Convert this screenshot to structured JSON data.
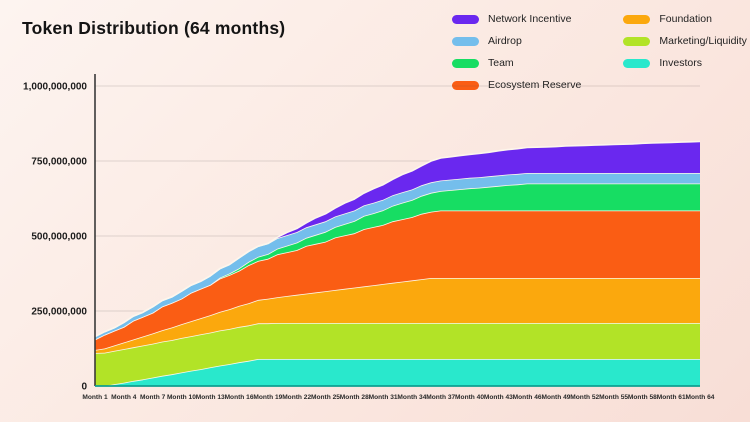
{
  "title": "Token Distribution (64 months)",
  "colors": {
    "background_top": "#fdf4f0",
    "background_bottom": "#f8ded6",
    "title_text": "#141414",
    "axis_line": "#3a3a3a",
    "baseline": "#0e9f90",
    "gridline": "rgba(90,80,75,0.18)",
    "band_edge_stroke": "#fdf6ec"
  },
  "legend": {
    "columns": [
      [
        {
          "label": "Network Incentive",
          "color": "#6a28ef"
        },
        {
          "label": "Airdrop",
          "color": "#74beec"
        },
        {
          "label": "Team",
          "color": "#17dd63"
        },
        {
          "label": "Ecosystem Reserve",
          "color": "#fa5d14"
        }
      ],
      [
        {
          "label": "Foundation",
          "color": "#fba80d"
        },
        {
          "label": "Marketing/Liquidity",
          "color": "#b2e327"
        },
        {
          "label": "Investors",
          "color": "#29e8cc"
        }
      ]
    ]
  },
  "chart_data": {
    "type": "area",
    "stacked": true,
    "title": "Token Distribution (64 months)",
    "xlabel": "",
    "ylabel": "",
    "unit_multiplier": 1000000,
    "x_months": {
      "start": 1,
      "end": 64
    },
    "ylim_millions": [
      0,
      1000
    ],
    "grid": true,
    "legend_position": "top-right",
    "yticks": {
      "values_millions": [
        0,
        250,
        500,
        750,
        1000
      ],
      "labels": [
        "0",
        "250,000,000",
        "500,000,000",
        "750,000,000",
        "1,000,000,000"
      ]
    },
    "xticks": {
      "months": [
        1,
        4,
        7,
        10,
        13,
        16,
        19,
        22,
        25,
        28,
        31,
        34,
        37,
        40,
        43,
        46,
        49,
        52,
        55,
        58,
        61,
        64
      ],
      "labels": [
        "Month 1",
        "Month 4",
        "Month 7",
        "Month 10",
        "Month 13",
        "Month 16",
        "Month 19",
        "Month 22",
        "Month 25",
        "Month 28",
        "Month 31",
        "Month 34",
        "Month 37",
        "Month 40",
        "Month 43",
        "Month 46",
        "Month 49",
        "Month 52",
        "Month 55",
        "Month 58",
        "Month 61",
        "Month 64"
      ]
    },
    "series_order_note": "bottom of stack first",
    "series": [
      {
        "name": "Investors",
        "color": "#29e8cc",
        "values_millions": [
          0,
          0,
          6,
          11,
          17,
          22,
          28,
          34,
          39,
          45,
          51,
          56,
          62,
          68,
          73,
          79,
          84,
          90,
          90,
          90,
          90,
          90,
          90,
          90,
          90,
          90,
          90,
          90,
          90,
          90,
          90,
          90,
          90,
          90,
          90,
          90,
          90,
          90,
          90,
          90,
          90,
          90,
          90,
          90,
          90,
          90,
          90,
          90,
          90,
          90,
          90,
          90,
          90,
          90,
          90,
          90,
          90,
          90,
          90,
          90,
          90,
          90,
          90,
          90
        ]
      },
      {
        "name": "Marketing/Liquidity",
        "color": "#b2e327",
        "values_millions": [
          110,
          111,
          111,
          112,
          112,
          113,
          113,
          114,
          114,
          115,
          115,
          116,
          116,
          117,
          117,
          118,
          118,
          119,
          119,
          120,
          120,
          120,
          120,
          120,
          120,
          120,
          120,
          120,
          120,
          120,
          120,
          120,
          120,
          120,
          120,
          120,
          120,
          120,
          120,
          120,
          120,
          120,
          120,
          120,
          120,
          120,
          120,
          120,
          120,
          120,
          120,
          120,
          120,
          120,
          120,
          120,
          120,
          120,
          120,
          120,
          120,
          120,
          120,
          120
        ]
      },
      {
        "name": "Foundation",
        "color": "#fba80d",
        "values_millions": [
          10,
          14,
          18,
          22,
          26,
          30,
          34,
          38,
          42,
          46,
          50,
          54,
          58,
          62,
          66,
          70,
          74,
          78,
          82,
          86,
          90,
          94,
          98,
          102,
          106,
          110,
          114,
          118,
          122,
          126,
          130,
          134,
          138,
          142,
          146,
          150,
          150,
          150,
          150,
          150,
          150,
          150,
          150,
          150,
          150,
          150,
          150,
          150,
          150,
          150,
          150,
          150,
          150,
          150,
          150,
          150,
          150,
          150,
          150,
          150,
          150,
          150,
          150,
          150
        ]
      },
      {
        "name": "Ecosystem Reserve",
        "color": "#fa5d14",
        "values_millions": [
          35,
          46,
          49,
          52,
          63,
          66,
          69,
          79,
          82,
          85,
          95,
          98,
          101,
          111,
          114,
          117,
          127,
          130,
          133,
          143,
          146,
          149,
          159,
          162,
          165,
          175,
          178,
          181,
          191,
          194,
          197,
          205,
          208,
          211,
          218,
          221,
          225,
          225,
          225,
          225,
          225,
          225,
          225,
          225,
          225,
          225,
          225,
          225,
          225,
          225,
          225,
          225,
          225,
          225,
          225,
          225,
          225,
          225,
          225,
          225,
          225,
          225,
          225,
          225
        ]
      },
      {
        "name": "Team",
        "color": "#17dd63",
        "values_millions": [
          0,
          0,
          0,
          0,
          0,
          0,
          0,
          0,
          0,
          0,
          0,
          0,
          0,
          3,
          5,
          8,
          11,
          14,
          16,
          19,
          22,
          25,
          27,
          30,
          33,
          35,
          38,
          41,
          44,
          46,
          49,
          52,
          55,
          57,
          60,
          63,
          65,
          68,
          71,
          74,
          76,
          79,
          82,
          85,
          87,
          90,
          90,
          90,
          90,
          90,
          90,
          90,
          90,
          90,
          90,
          90,
          90,
          90,
          90,
          90,
          90,
          90,
          90,
          90
        ]
      },
      {
        "name": "Airdrop",
        "color": "#74beec",
        "values_millions": [
          10,
          10,
          10,
          15,
          15,
          15,
          20,
          20,
          20,
          25,
          25,
          25,
          30,
          30,
          30,
          35,
          35,
          35,
          35,
          35,
          35,
          35,
          35,
          35,
          35,
          35,
          35,
          35,
          35,
          35,
          35,
          35,
          35,
          35,
          35,
          35,
          35,
          35,
          35,
          35,
          35,
          35,
          35,
          35,
          35,
          35,
          35,
          35,
          35,
          35,
          35,
          35,
          35,
          35,
          35,
          35,
          35,
          35,
          35,
          35,
          35,
          35,
          35,
          35
        ]
      },
      {
        "name": "Network Incentive",
        "color": "#6a28ef",
        "values_millions": [
          0,
          0,
          0,
          0,
          0,
          0,
          0,
          0,
          0,
          0,
          0,
          0,
          0,
          0,
          0,
          0,
          0,
          0,
          0,
          3,
          9,
          12,
          15,
          22,
          25,
          28,
          35,
          38,
          41,
          47,
          50,
          53,
          59,
          62,
          65,
          71,
          75,
          76,
          77,
          78,
          79,
          80,
          82,
          83,
          84,
          85,
          86,
          87,
          88,
          90,
          91,
          92,
          93,
          94,
          95,
          96,
          97,
          99,
          100,
          101,
          102,
          103,
          104,
          105
        ]
      }
    ]
  }
}
